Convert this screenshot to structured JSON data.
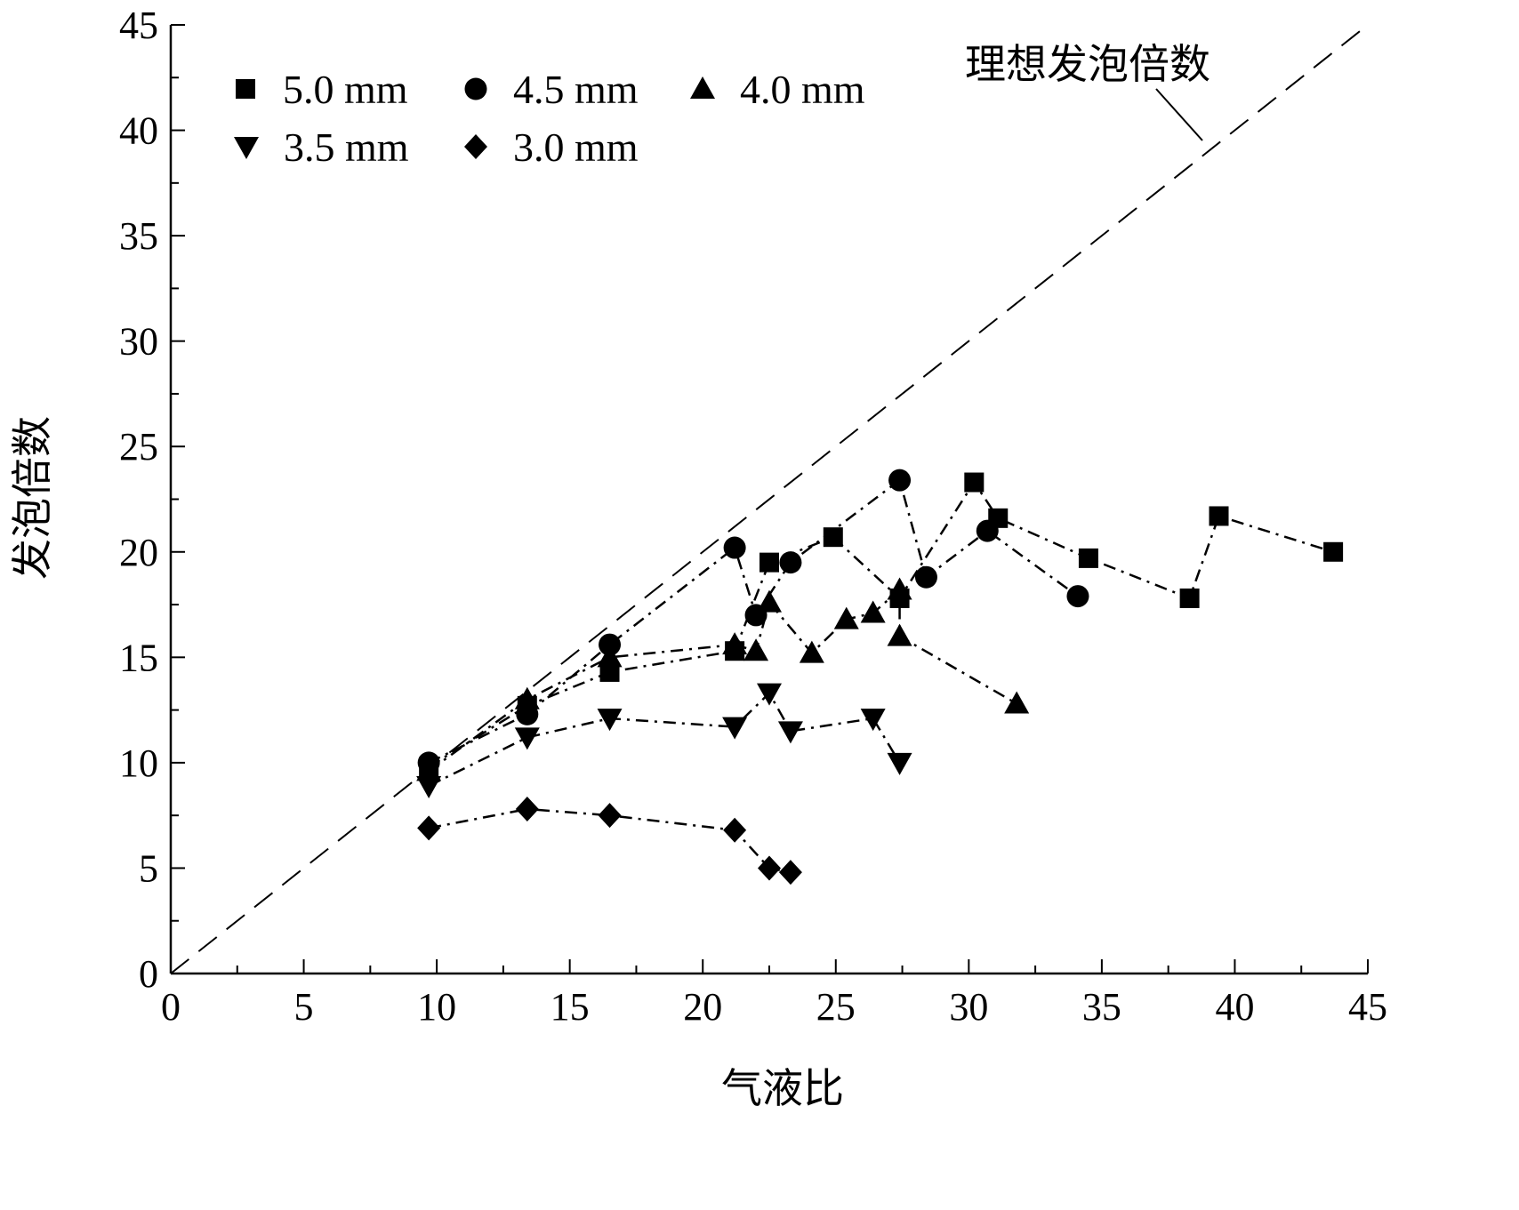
{
  "chart_data": {
    "type": "scatter",
    "title": "",
    "xlabel": "气液比",
    "ylabel": "发泡倍数",
    "xlim": [
      0,
      45
    ],
    "ylim": [
      0,
      45
    ],
    "xticks": [
      "0",
      "5",
      "10",
      "15",
      "20",
      "25",
      "30",
      "35",
      "40",
      "45"
    ],
    "yticks": [
      "0",
      "5",
      "10",
      "15",
      "20",
      "25",
      "30",
      "35",
      "40",
      "45"
    ],
    "grid": false,
    "legend_position": "top-left",
    "reference_line": {
      "label": "理想发泡倍数",
      "x": [
        0,
        45
      ],
      "y": [
        0,
        45
      ],
      "style": "dashed"
    },
    "series": [
      {
        "name": "5.0 mm",
        "marker": "square",
        "x": [
          9.7,
          13.4,
          16.5,
          21.2,
          22.5,
          24.9,
          27.4,
          30.2,
          31.1,
          34.5,
          38.3,
          39.4,
          43.7
        ],
        "y": [
          9.8,
          12.7,
          14.3,
          15.3,
          19.5,
          20.7,
          17.8,
          23.3,
          21.6,
          19.7,
          17.8,
          21.7,
          20.0
        ]
      },
      {
        "name": "4.5 mm",
        "marker": "circle",
        "x": [
          9.7,
          13.4,
          16.5,
          21.2,
          22.0,
          23.3,
          27.4,
          28.4,
          30.7,
          34.1
        ],
        "y": [
          10.0,
          12.3,
          15.6,
          20.2,
          17.0,
          19.5,
          23.4,
          18.8,
          21.0,
          17.9
        ]
      },
      {
        "name": "4.0 mm",
        "marker": "triangle-up",
        "x": [
          9.7,
          13.4,
          16.5,
          21.2,
          22.0,
          22.5,
          24.1,
          25.4,
          26.4,
          27.4,
          27.4,
          31.8
        ],
        "y": [
          9.6,
          13.0,
          15.0,
          15.6,
          15.3,
          17.6,
          15.2,
          16.8,
          17.1,
          18.2,
          16.0,
          12.8
        ]
      },
      {
        "name": "3.5 mm",
        "marker": "triangle-down",
        "x": [
          9.7,
          13.4,
          16.5,
          21.2,
          22.5,
          23.3,
          26.4,
          27.4
        ],
        "y": [
          8.9,
          11.2,
          12.1,
          11.7,
          13.3,
          11.5,
          12.1,
          10.0
        ]
      },
      {
        "name": "3.0 mm",
        "marker": "diamond",
        "x": [
          9.7,
          13.4,
          16.5,
          21.2,
          22.5,
          23.3
        ],
        "y": [
          6.9,
          7.8,
          7.5,
          6.8,
          5.0,
          4.8
        ]
      }
    ]
  }
}
